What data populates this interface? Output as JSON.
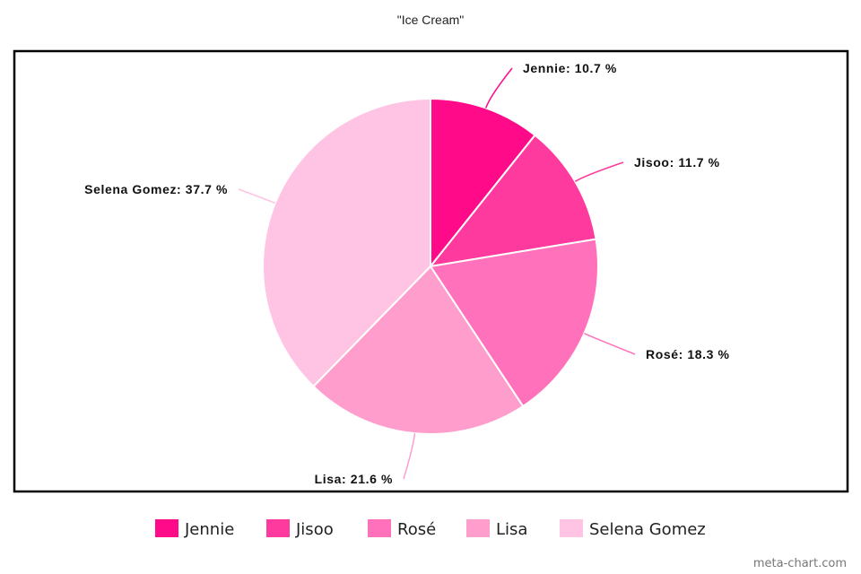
{
  "chart_data": {
    "type": "pie",
    "title": "\"Ice Cream\"",
    "categories": [
      "Jennie",
      "Jisoo",
      "Rosé",
      "Lisa",
      "Selena Gomez"
    ],
    "values": [
      10.7,
      11.7,
      18.3,
      21.6,
      37.7
    ],
    "unit": "%",
    "colors": [
      "#ff0a88",
      "#ff3a9e",
      "#ff72bb",
      "#ff9dcc",
      "#ffc4e4"
    ],
    "legend_position": "bottom"
  },
  "watermark": "meta-chart.com"
}
